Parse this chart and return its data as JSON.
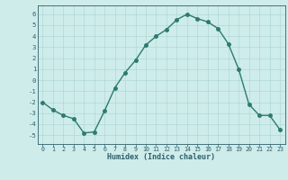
{
  "x": [
    0,
    1,
    2,
    3,
    4,
    5,
    6,
    7,
    8,
    9,
    10,
    11,
    12,
    13,
    14,
    15,
    16,
    17,
    18,
    19,
    20,
    21,
    22,
    23
  ],
  "y": [
    -2.0,
    -2.7,
    -3.2,
    -3.5,
    -4.8,
    -4.7,
    -2.8,
    -0.7,
    0.7,
    1.8,
    3.2,
    4.0,
    4.6,
    5.5,
    6.0,
    5.6,
    5.3,
    4.7,
    3.3,
    1.0,
    -2.2,
    -3.2,
    -3.2,
    -4.5
  ],
  "line_color": "#2d7a6e",
  "bg_color": "#ceecea",
  "grid_color": "#b0d8d5",
  "xlabel": "Humidex (Indice chaleur)",
  "xlim": [
    -0.5,
    23.5
  ],
  "ylim": [
    -5.8,
    6.8
  ],
  "yticks": [
    -5,
    -4,
    -3,
    -2,
    -1,
    0,
    1,
    2,
    3,
    4,
    5,
    6
  ],
  "xticks": [
    0,
    1,
    2,
    3,
    4,
    5,
    6,
    7,
    8,
    9,
    10,
    11,
    12,
    13,
    14,
    15,
    16,
    17,
    18,
    19,
    20,
    21,
    22,
    23
  ],
  "font_color": "#2d5f6a",
  "marker_size": 2.5,
  "line_width": 1.0
}
